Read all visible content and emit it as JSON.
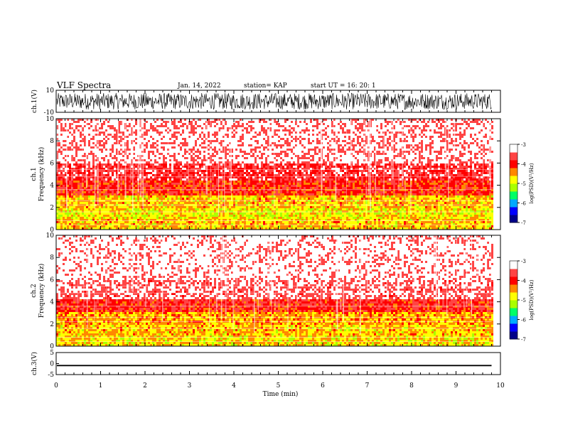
{
  "header": {
    "title": "VLF Spectra",
    "date": "Jan. 14, 2022",
    "station": "station= KAP",
    "start": "start  UT =   16: 20: 1"
  },
  "colors": {
    "trace": "#000000",
    "colormap": [
      "#000088",
      "#0000ff",
      "#00aaff",
      "#00ff66",
      "#aaff00",
      "#ffff00",
      "#ff8800",
      "#ff0000",
      "#ff4444",
      "#ffffff"
    ]
  },
  "chart_data": [
    {
      "type": "line",
      "panel": "waveform-ch1",
      "ylabel": "ch.1(V)",
      "ylim": [
        -10,
        10
      ],
      "yticks": [
        "10",
        "-10"
      ],
      "x_range_min": [
        0,
        9.8
      ],
      "description_trace": "dense noisy signal spanning roughly -8 to 8 V"
    },
    {
      "type": "heatmap",
      "panel": "spectrogram-ch1",
      "ylabel": "ch.1\nFrequency (kHz)",
      "ylim": [
        0,
        10
      ],
      "yticks": [
        "0",
        "2",
        "4",
        "6",
        "8",
        "10"
      ],
      "xlim": [
        0,
        10
      ],
      "data_x_max": 9.8,
      "colorbar": {
        "label": "log(PSD)(V²/Hz)",
        "range": [
          -7,
          -3
        ],
        "ticks": [
          "-3",
          "-4",
          "-5",
          "-6",
          "-7"
        ]
      },
      "frequency_profile_kHz": [
        {
          "range": [
            0,
            1
          ],
          "logPSD": -4.6
        },
        {
          "range": [
            1,
            2
          ],
          "logPSD": -4.8
        },
        {
          "range": [
            2,
            3
          ],
          "logPSD": -4.6
        },
        {
          "range": [
            3,
            4.5
          ],
          "logPSD": -4.0
        },
        {
          "range": [
            4.5,
            6
          ],
          "logPSD": -3.7
        },
        {
          "range": [
            6,
            10
          ],
          "logPSD": -3.3
        }
      ]
    },
    {
      "type": "heatmap",
      "panel": "spectrogram-ch2",
      "ylabel": "ch.2\nFrequency (kHz)",
      "ylim": [
        0,
        10
      ],
      "yticks": [
        "0",
        "2",
        "4",
        "6",
        "8",
        "10"
      ],
      "xlim": [
        0,
        10
      ],
      "data_x_max": 9.8,
      "colorbar": {
        "label": "log(PSD)(V²/Hz)",
        "range": [
          -7,
          -3
        ],
        "ticks": [
          "-3",
          "-4",
          "-5",
          "-6",
          "-7"
        ]
      },
      "frequency_profile_kHz": [
        {
          "range": [
            0,
            1
          ],
          "logPSD": -4.7
        },
        {
          "range": [
            1,
            2
          ],
          "logPSD": -4.6
        },
        {
          "range": [
            2,
            3
          ],
          "logPSD": -4.5
        },
        {
          "range": [
            3,
            4.2
          ],
          "logPSD": -3.9
        },
        {
          "range": [
            4.2,
            6
          ],
          "logPSD": -3.4
        },
        {
          "range": [
            6,
            10
          ],
          "logPSD": -3.2
        }
      ]
    },
    {
      "type": "line",
      "panel": "waveform-ch3",
      "ylabel": "ch.3(V)",
      "ylim": [
        -5,
        5
      ],
      "yticks": [
        "5",
        "0",
        "-5"
      ],
      "trace_band": [
        -1.2,
        -0.6
      ],
      "xlabel": "Time (min)",
      "xlim": [
        0,
        10
      ],
      "xticks": [
        "0",
        "1",
        "2",
        "3",
        "4",
        "5",
        "6",
        "7",
        "8",
        "9",
        "10"
      ]
    }
  ]
}
